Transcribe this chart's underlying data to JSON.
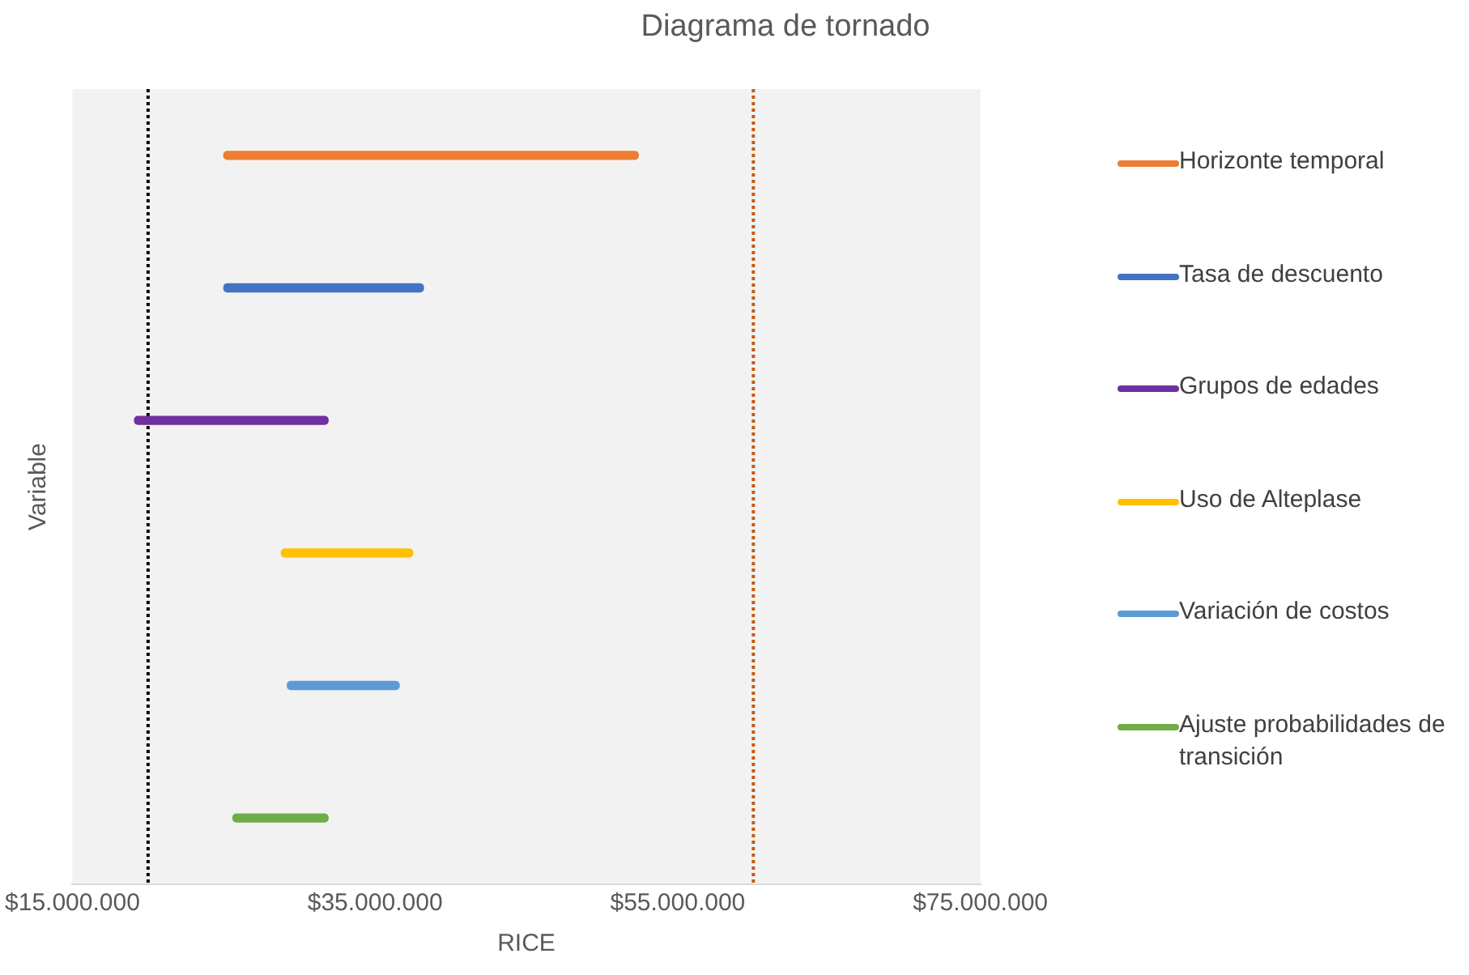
{
  "chart_data": {
    "type": "bar",
    "orientation": "horizontal",
    "title": "Diagrama de tornado",
    "xlabel": "RICE",
    "ylabel": "Variable",
    "categories": [
      null,
      null,
      null,
      null,
      null,
      null
    ],
    "series": [
      {
        "name": "Horizonte temporal",
        "color": "#ed7d31",
        "values": [
          27400000,
          null,
          null,
          null,
          null,
          null
        ],
        "base": [
          25000000,
          null,
          null,
          null,
          null,
          null
        ]
      },
      {
        "name": "Tasa de descuento",
        "color": "#4472c4",
        "values": [
          null,
          13200000,
          null,
          null,
          null,
          null
        ],
        "base": [
          null,
          25000000,
          null,
          null,
          null,
          null
        ]
      },
      {
        "name": "Grupos de edades",
        "color": "#7030a0",
        "values": [
          null,
          null,
          12800000,
          null,
          null,
          null
        ],
        "base": [
          null,
          null,
          19100000,
          null,
          null,
          null
        ]
      },
      {
        "name": "Uso de Alteplase",
        "color": "#ffc000",
        "values": [
          null,
          null,
          null,
          8700000,
          null,
          null
        ],
        "base": [
          null,
          null,
          null,
          28800000,
          null,
          null
        ]
      },
      {
        "name": "Variación de costos",
        "color": "#5b9bd5",
        "values": [
          null,
          null,
          null,
          null,
          7400000,
          null
        ],
        "base": [
          null,
          null,
          null,
          null,
          29200000,
          null
        ]
      },
      {
        "name": "Ajuste probabilidades de transición",
        "color": "#70ad47",
        "values": [
          null,
          null,
          null,
          null,
          null,
          6300000
        ],
        "base": [
          null,
          null,
          null,
          null,
          null,
          25600000
        ]
      }
    ],
    "xlim": [
      15000000,
      75000000
    ],
    "xticks": [
      {
        "value": 15000000,
        "label": "$15.000.000"
      },
      {
        "value": 35000000,
        "label": "$35.000.000"
      },
      {
        "value": 55000000,
        "label": "$55.000.000"
      },
      {
        "value": 75000000,
        "label": "$75.000.000"
      }
    ],
    "ref_lines": [
      {
        "axis": "x",
        "value": 20000000,
        "color": "#000000",
        "line_style": "dotted"
      },
      {
        "axis": "x",
        "value": 60000000,
        "color": "#c55a11",
        "line_style": "dotted"
      }
    ],
    "legend": "right"
  }
}
